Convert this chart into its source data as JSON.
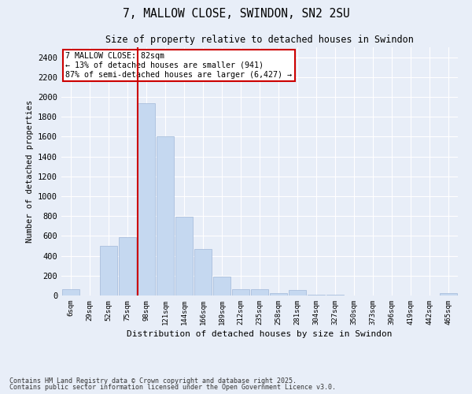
{
  "title1": "7, MALLOW CLOSE, SWINDON, SN2 2SU",
  "title2": "Size of property relative to detached houses in Swindon",
  "xlabel": "Distribution of detached houses by size in Swindon",
  "ylabel": "Number of detached properties",
  "categories": [
    "6sqm",
    "29sqm",
    "52sqm",
    "75sqm",
    "98sqm",
    "121sqm",
    "144sqm",
    "166sqm",
    "189sqm",
    "212sqm",
    "235sqm",
    "258sqm",
    "281sqm",
    "304sqm",
    "327sqm",
    "350sqm",
    "373sqm",
    "396sqm",
    "419sqm",
    "442sqm",
    "465sqm"
  ],
  "values": [
    60,
    0,
    500,
    590,
    1940,
    1600,
    790,
    470,
    190,
    65,
    65,
    25,
    55,
    10,
    10,
    0,
    0,
    0,
    0,
    0,
    20
  ],
  "bar_color": "#c5d8f0",
  "bar_edge_color": "#a0b8d8",
  "vline_color": "#cc0000",
  "annotation_text": "7 MALLOW CLOSE: 82sqm\n← 13% of detached houses are smaller (941)\n87% of semi-detached houses are larger (6,427) →",
  "annotation_box_color": "#ffffff",
  "annotation_box_edge": "#cc0000",
  "ylim": [
    0,
    2500
  ],
  "yticks": [
    0,
    200,
    400,
    600,
    800,
    1000,
    1200,
    1400,
    1600,
    1800,
    2000,
    2200,
    2400
  ],
  "background_color": "#e8eef8",
  "footer1": "Contains HM Land Registry data © Crown copyright and database right 2025.",
  "footer2": "Contains public sector information licensed under the Open Government Licence v3.0."
}
